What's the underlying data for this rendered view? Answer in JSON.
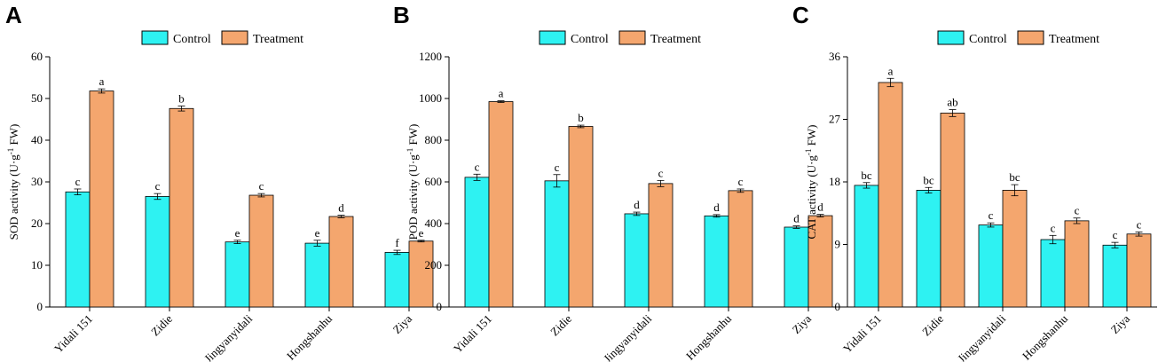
{
  "colors": {
    "control": "#2EF2F2",
    "treatment": "#F4A66E"
  },
  "chart_data": [
    {
      "type": "bar",
      "panel": "A",
      "ylabel_main": "SOD activity (U·g",
      "ylabel_sup": "-1",
      "ylabel_end": " FW)",
      "ylim": [
        0,
        60
      ],
      "yticks": [
        0,
        10,
        20,
        30,
        40,
        50,
        60
      ],
      "categories": [
        "Yidali 151",
        "Zidie",
        "Jingyanyidali",
        "Hongshanhu",
        "Ziya"
      ],
      "legend": [
        "Control",
        "Treatment"
      ],
      "series": [
        {
          "name": "Control",
          "values": [
            27.6,
            26.5,
            15.6,
            15.3,
            13.1
          ],
          "errors": [
            0.7,
            0.7,
            0.4,
            0.7,
            0.5
          ],
          "letters": [
            "c",
            "c",
            "e",
            "e",
            "f"
          ]
        },
        {
          "name": "Treatment",
          "values": [
            51.8,
            47.6,
            26.8,
            21.7,
            15.8
          ],
          "errors": [
            0.5,
            0.6,
            0.4,
            0.3,
            0.2
          ],
          "letters": [
            "a",
            "b",
            "c",
            "d",
            "e"
          ]
        }
      ]
    },
    {
      "type": "bar",
      "panel": "B",
      "ylabel_main": "POD activity (U·g",
      "ylabel_sup": "-1",
      "ylabel_end": " FW)",
      "ylim": [
        0,
        1200
      ],
      "yticks": [
        0,
        200,
        400,
        600,
        800,
        1000,
        1200
      ],
      "categories": [
        "Yidali 151",
        "Zidie",
        "Jingyanyidali",
        "Hongshanhu",
        "Ziya"
      ],
      "legend": [
        "Control",
        "Treatment"
      ],
      "series": [
        {
          "name": "Control",
          "values": [
            622,
            605,
            447,
            437,
            383
          ],
          "errors": [
            15,
            30,
            8,
            6,
            6
          ],
          "letters": [
            "c",
            "c",
            "d",
            "d",
            "d"
          ]
        },
        {
          "name": "Treatment",
          "values": [
            985,
            866,
            592,
            558,
            438
          ],
          "errors": [
            4,
            6,
            15,
            8,
            6
          ],
          "letters": [
            "a",
            "b",
            "c",
            "c",
            "d"
          ]
        }
      ]
    },
    {
      "type": "bar",
      "panel": "C",
      "ylabel_main": "CAT activity (U·g",
      "ylabel_sup": "-1",
      "ylabel_end": " FW)",
      "ylim": [
        0,
        36
      ],
      "yticks": [
        0,
        9,
        18,
        27,
        36
      ],
      "categories": [
        "Yidali 151",
        "Zidie",
        "Jingyanyidali",
        "Hongshanhu",
        "Ziya"
      ],
      "legend": [
        "Control",
        "Treatment"
      ],
      "series": [
        {
          "name": "Control",
          "values": [
            17.5,
            16.8,
            11.8,
            9.7,
            8.9
          ],
          "errors": [
            0.4,
            0.4,
            0.3,
            0.6,
            0.4
          ],
          "letters": [
            "bc",
            "bc",
            "c",
            "c",
            "c"
          ]
        },
        {
          "name": "Treatment",
          "values": [
            32.3,
            27.9,
            16.8,
            12.4,
            10.5
          ],
          "errors": [
            0.6,
            0.5,
            0.8,
            0.4,
            0.3
          ],
          "letters": [
            "a",
            "ab",
            "bc",
            "c",
            "c"
          ]
        }
      ]
    }
  ]
}
